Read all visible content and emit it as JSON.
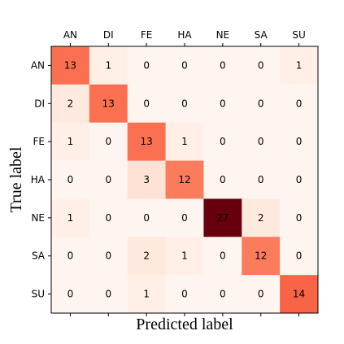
{
  "chart_data": {
    "type": "heatmap",
    "xlabel": "Predicted label",
    "ylabel": "True label",
    "x_categories": [
      "AN",
      "DI",
      "FE",
      "HA",
      "NE",
      "SA",
      "SU"
    ],
    "y_categories": [
      "AN",
      "DI",
      "FE",
      "HA",
      "NE",
      "SA",
      "SU"
    ],
    "x_tick_position": "top",
    "colormap": "Reds",
    "value_range": [
      0,
      27
    ],
    "matrix": [
      [
        13,
        1,
        0,
        0,
        0,
        0,
        1
      ],
      [
        2,
        13,
        0,
        0,
        0,
        0,
        0
      ],
      [
        1,
        0,
        13,
        1,
        0,
        0,
        0
      ],
      [
        0,
        0,
        3,
        12,
        0,
        0,
        0
      ],
      [
        1,
        0,
        0,
        0,
        27,
        2,
        0
      ],
      [
        0,
        0,
        2,
        1,
        0,
        12,
        0
      ],
      [
        0,
        0,
        1,
        0,
        0,
        0,
        14
      ]
    ],
    "colors": {
      "low": "#fff5f0",
      "high": "#67000d"
    }
  }
}
